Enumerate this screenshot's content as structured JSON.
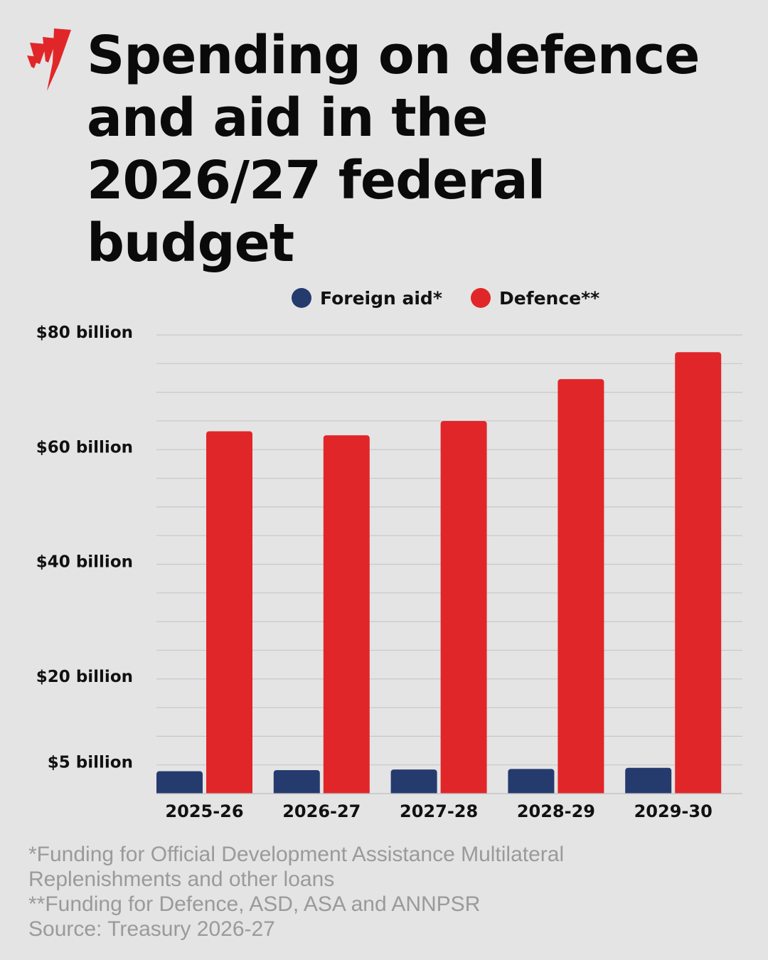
{
  "title": "Spending on defence and aid in the 2026/27 federal budget",
  "brand_color": "#e1262a",
  "chart_data": {
    "type": "bar",
    "categories": [
      "2025-26",
      "2026-27",
      "2027-28",
      "2028-29",
      "2029-30"
    ],
    "series": [
      {
        "name": "Foreign aid*",
        "color": "#253b6e",
        "values": [
          3.9,
          4.1,
          4.2,
          4.3,
          4.5
        ]
      },
      {
        "name": "Defence**",
        "color": "#e1262a",
        "values": [
          63.2,
          62.5,
          65.0,
          72.3,
          77.0
        ]
      }
    ],
    "ytick_values": [
      5,
      20,
      40,
      60,
      80
    ],
    "ytick_labels": [
      "$5 billion",
      "$20 billion",
      "$40 billion",
      "$60 billion",
      "$80 billion"
    ],
    "ylim": [
      0,
      80
    ],
    "grid": true,
    "legend_position": "top"
  },
  "footnotes": [
    "*Funding for Official Development Assistance Multilateral",
    "Replenishments and other loans",
    "**Funding for Defence, ASD, ASA and ANNPSR",
    "Source: Treasury 2026-27"
  ]
}
